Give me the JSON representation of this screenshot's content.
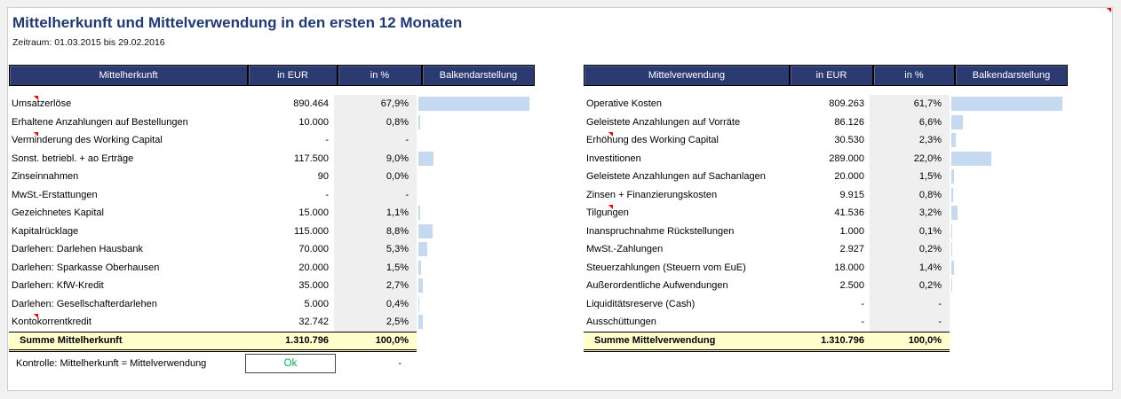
{
  "page": {
    "title": "Mittelherkunft und Mittelverwendung in den ersten 12 Monaten",
    "subtitle": "Zeitraum: 01.03.2015 bis 29.02.2016"
  },
  "columns": {
    "eur": "in EUR",
    "pct": "in %",
    "bars": "Balkendarstellung"
  },
  "colors": {
    "header_navy": "#2b3a70",
    "title_navy": "#1f3a76",
    "bar_blue": "#c5d9f1",
    "pct_column_gray": "#efefef",
    "total_yellow": "#ffffcc",
    "ok_green": "#00b050",
    "note_red": "#ff0000"
  },
  "left_table": {
    "title": "Mittelherkunft",
    "rows": [
      {
        "label": "Umsatzerlöse",
        "eur": "890.464",
        "pct": "67,9%",
        "pct_num": 67.9,
        "has_note": true
      },
      {
        "label": "Erhaltene Anzahlungen auf Bestellungen",
        "eur": "10.000",
        "pct": "0,8%",
        "pct_num": 0.8,
        "has_note": false
      },
      {
        "label": "Verminderung des Working Capital",
        "eur": "-",
        "pct": "-",
        "pct_num": 0,
        "has_note": true
      },
      {
        "label": "Sonst. betriebl. + ao Erträge",
        "eur": "117.500",
        "pct": "9,0%",
        "pct_num": 9.0,
        "has_note": false
      },
      {
        "label": "Zinseinnahmen",
        "eur": "90",
        "pct": "0,0%",
        "pct_num": 0,
        "has_note": false
      },
      {
        "label": "MwSt.-Erstattungen",
        "eur": "-",
        "pct": "-",
        "pct_num": 0,
        "has_note": false
      },
      {
        "label": "Gezeichnetes Kapital",
        "eur": "15.000",
        "pct": "1,1%",
        "pct_num": 1.1,
        "has_note": false
      },
      {
        "label": "Kapitalrücklage",
        "eur": "115.000",
        "pct": "8,8%",
        "pct_num": 8.8,
        "has_note": false
      },
      {
        "label": "Darlehen: Darlehen Hausbank",
        "eur": "70.000",
        "pct": "5,3%",
        "pct_num": 5.3,
        "has_note": false
      },
      {
        "label": "Darlehen: Sparkasse Oberhausen",
        "eur": "20.000",
        "pct": "1,5%",
        "pct_num": 1.5,
        "has_note": false
      },
      {
        "label": "Darlehen: KfW-Kredit",
        "eur": "35.000",
        "pct": "2,7%",
        "pct_num": 2.7,
        "has_note": false
      },
      {
        "label": "Darlehen: Gesellschafterdarlehen",
        "eur": "5.000",
        "pct": "0,4%",
        "pct_num": 0.4,
        "has_note": false
      },
      {
        "label": "Kontokorrentkredit",
        "eur": "32.742",
        "pct": "2,5%",
        "pct_num": 2.5,
        "has_note": true
      }
    ],
    "total": {
      "label": "Summe Mittelherkunft",
      "eur": "1.310.796",
      "pct": "100,0%"
    }
  },
  "right_table": {
    "title": "Mittelverwendung",
    "rows": [
      {
        "label": "Operative Kosten",
        "eur": "809.263",
        "pct": "61,7%",
        "pct_num": 61.7,
        "has_note": false
      },
      {
        "label": "Geleistete Anzahlungen auf Vorräte",
        "eur": "86.126",
        "pct": "6,6%",
        "pct_num": 6.6,
        "has_note": false
      },
      {
        "label": "Erhöhung des Working Capital",
        "eur": "30.530",
        "pct": "2,3%",
        "pct_num": 2.3,
        "has_note": true
      },
      {
        "label": "Investitionen",
        "eur": "289.000",
        "pct": "22,0%",
        "pct_num": 22.0,
        "has_note": false
      },
      {
        "label": "Geleistete Anzahlungen auf Sachanlagen",
        "eur": "20.000",
        "pct": "1,5%",
        "pct_num": 1.5,
        "has_note": false
      },
      {
        "label": "Zinsen + Finanzierungskosten",
        "eur": "9.915",
        "pct": "0,8%",
        "pct_num": 0.8,
        "has_note": false
      },
      {
        "label": "Tilgungen",
        "eur": "41.536",
        "pct": "3,2%",
        "pct_num": 3.2,
        "has_note": true
      },
      {
        "label": "Inanspruchnahme Rückstellungen",
        "eur": "1.000",
        "pct": "0,1%",
        "pct_num": 0.1,
        "has_note": false
      },
      {
        "label": "MwSt.-Zahlungen",
        "eur": "2.927",
        "pct": "0,2%",
        "pct_num": 0.2,
        "has_note": false
      },
      {
        "label": "Steuerzahlungen (Steuern vom EuE)",
        "eur": "18.000",
        "pct": "1,4%",
        "pct_num": 1.4,
        "has_note": false
      },
      {
        "label": "Außerordentliche Aufwendungen",
        "eur": "2.500",
        "pct": "0,2%",
        "pct_num": 0.2,
        "has_note": false
      },
      {
        "label": "Liquiditätsreserve (Cash)",
        "eur": "-",
        "pct": "-",
        "pct_num": 0,
        "has_note": false
      },
      {
        "label": "Ausschüttungen",
        "eur": "-",
        "pct": "-",
        "pct_num": 0,
        "has_note": false
      }
    ],
    "total": {
      "label": "Summe Mittelverwendung",
      "eur": "1.310.796",
      "pct": "100,0%"
    }
  },
  "control": {
    "label": "Kontrolle: Mittelherkunft = Mittelverwendung",
    "status": "Ok",
    "dash": "-"
  }
}
